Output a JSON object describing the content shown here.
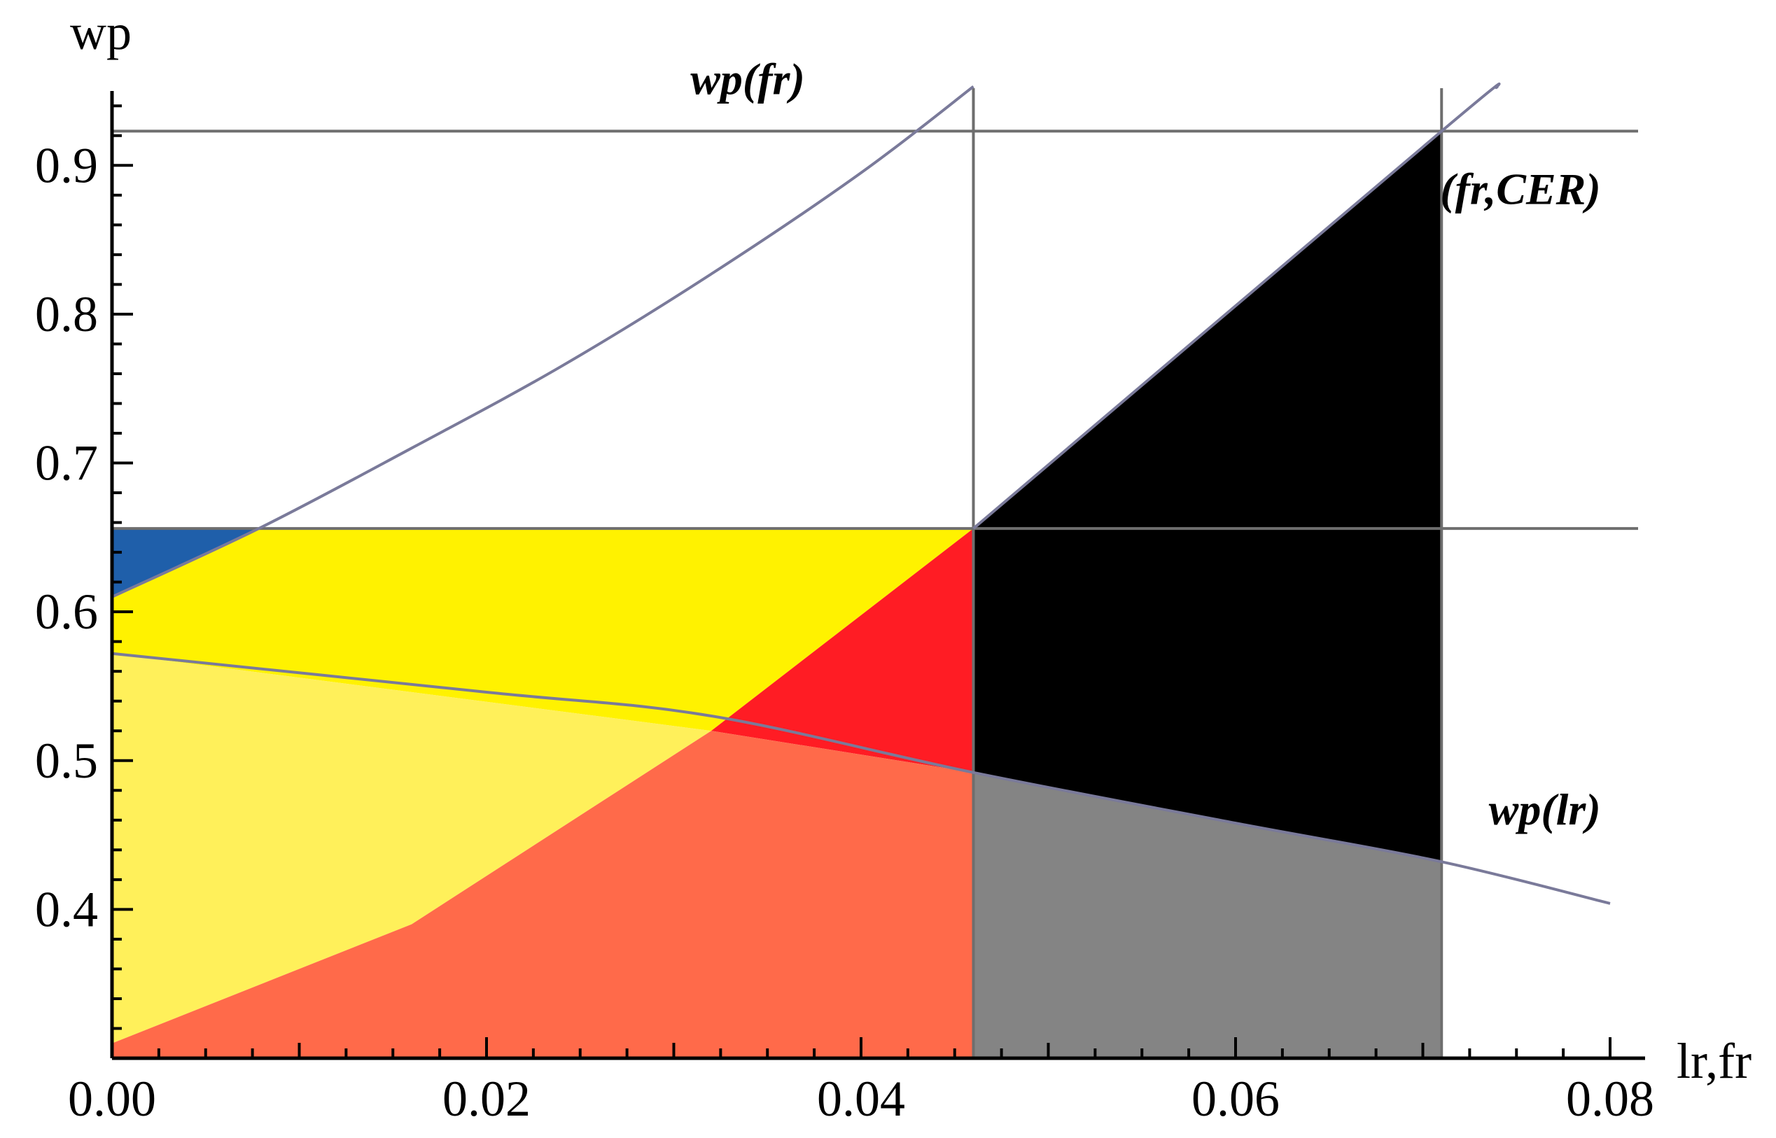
{
  "chart_data": {
    "type": "area",
    "xlabel": "lr,fr",
    "ylabel": "wp",
    "xlim": [
      0,
      0.08
    ],
    "ylim": [
      0.3,
      0.95
    ],
    "x_ticks": [
      "0.00",
      "0.02",
      "0.04",
      "0.06",
      "0.08"
    ],
    "x_tick_values": [
      0,
      0.02,
      0.04,
      0.06,
      0.08
    ],
    "y_ticks": [
      "0.4",
      "0.5",
      "0.6",
      "0.7",
      "0.8",
      "0.9"
    ],
    "y_tick_values": [
      0.4,
      0.5,
      0.6,
      0.7,
      0.8,
      0.9
    ],
    "reference_lines": {
      "horizontal": [
        0.923,
        0.656
      ],
      "vertical": [
        0.046,
        0.071
      ]
    },
    "series": [
      {
        "name": "wp(fr)",
        "x": [
          0,
          0.008,
          0.016,
          0.024,
          0.032,
          0.04,
          0.046
        ],
        "y": [
          0.61,
          0.657,
          0.71,
          0.765,
          0.827,
          0.895,
          0.953
        ]
      },
      {
        "name": "wp(lr)",
        "x": [
          0,
          0.02,
          0.032,
          0.046,
          0.06,
          0.071,
          0.08
        ],
        "y": [
          0.572,
          0.546,
          0.53,
          0.492,
          0.458,
          0.432,
          0.404
        ]
      },
      {
        "name": "wp(fr,CER)",
        "x": [
          0.046,
          0.071,
          0.074
        ],
        "y": [
          0.656,
          0.923,
          0.953
        ]
      }
    ],
    "regions": [
      {
        "color": "#1F5FAA",
        "x": [
          0,
          0.008,
          0
        ],
        "y": [
          0.656,
          0.656,
          0.61
        ]
      },
      {
        "color": "#FFF200",
        "x": [
          0,
          0.008,
          0.046,
          0.032,
          0
        ],
        "y": [
          0.61,
          0.656,
          0.656,
          0.52,
          0.572
        ]
      },
      {
        "color": "#FF1C24",
        "x": [
          0.032,
          0.046,
          0.046
        ],
        "y": [
          0.52,
          0.656,
          0.492
        ]
      },
      {
        "color": "#FFF05A",
        "x": [
          0,
          0.032,
          0.016,
          0
        ],
        "y": [
          0.572,
          0.52,
          0.39,
          0.31
        ]
      },
      {
        "color": "#FF6A4A",
        "x": [
          0,
          0.016,
          0.032,
          0.046,
          0.046,
          0
        ],
        "y": [
          0.31,
          0.39,
          0.52,
          0.492,
          0.3,
          0.3
        ]
      },
      {
        "color": "#000000",
        "x": [
          0.046,
          0.071,
          0.071,
          0.046
        ],
        "y": [
          0.656,
          0.923,
          0.432,
          0.492
        ]
      },
      {
        "color": "#848484",
        "x": [
          0.046,
          0.071,
          0.071,
          0.046
        ],
        "y": [
          0.492,
          0.432,
          0.3,
          0.3
        ]
      }
    ],
    "curve_labels": [
      {
        "text": "wp(fr)",
        "x": 0.037,
        "y": 0.948
      },
      {
        "text": "wp(fr,CER)",
        "x": 0.0795,
        "y": 0.874
      },
      {
        "text": "wp(lr)",
        "x": 0.0795,
        "y": 0.457
      }
    ],
    "colors": {
      "axis": "#000000",
      "reference_line": "#6e6e6e",
      "curve": "#7a7a9a"
    }
  }
}
